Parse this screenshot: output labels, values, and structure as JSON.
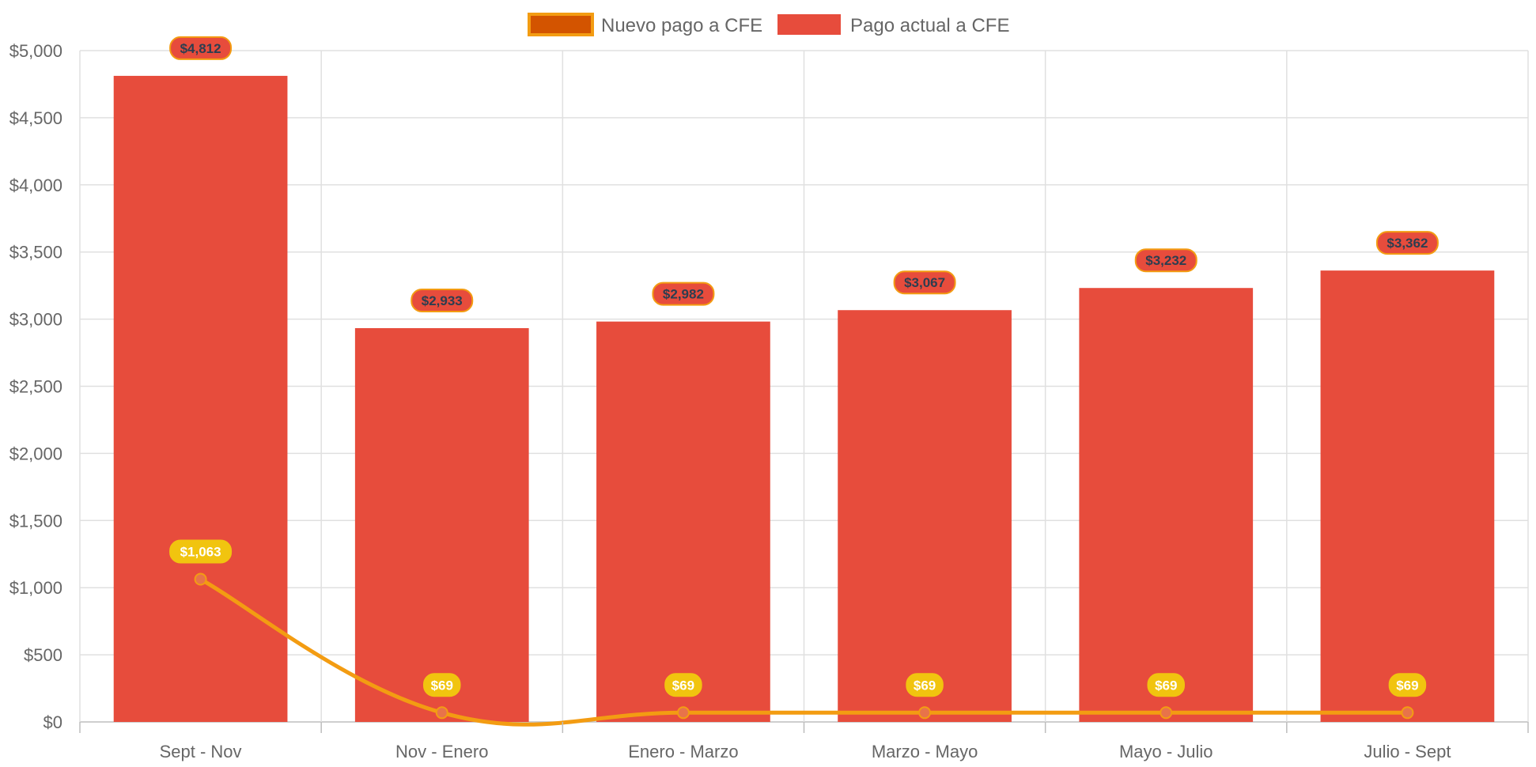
{
  "chart_data": {
    "type": "bar",
    "categories": [
      "Sept - Nov",
      "Nov - Enero",
      "Enero - Marzo",
      "Marzo - Mayo",
      "Mayo - Julio",
      "Julio - Sept"
    ],
    "series": [
      {
        "name": "Nuevo pago a CFE",
        "type": "line",
        "values": [
          1063,
          69,
          69,
          69,
          69,
          69
        ],
        "labels": [
          "$1,063",
          "$69",
          "$69",
          "$69",
          "$69",
          "$69"
        ],
        "color": "#f39c12",
        "legend_fill": "#d35400",
        "point_color": "#e8734a",
        "label_bg": "#f1c40f",
        "label_text_color": "#ffffff"
      },
      {
        "name": "Pago actual a CFE",
        "type": "bar",
        "values": [
          4812,
          2933,
          2982,
          3067,
          3232,
          3362
        ],
        "labels": [
          "$4,812",
          "$2,933",
          "$2,982",
          "$3,067",
          "$3,232",
          "$3,362"
        ],
        "color": "#e74c3c",
        "label_bg": "#e74c3c",
        "label_border": "#f39c12",
        "label_text_color": "#2c3e50"
      }
    ],
    "yaxis": {
      "min": 0,
      "max": 5000,
      "step": 500,
      "ticks": [
        "$0",
        "$500",
        "$1,000",
        "$1,500",
        "$2,000",
        "$2,500",
        "$3,000",
        "$3,500",
        "$4,000",
        "$4,500",
        "$5,000"
      ]
    },
    "grid": true,
    "legend_position": "top-center",
    "title": "",
    "xlabel": "",
    "ylabel": ""
  }
}
